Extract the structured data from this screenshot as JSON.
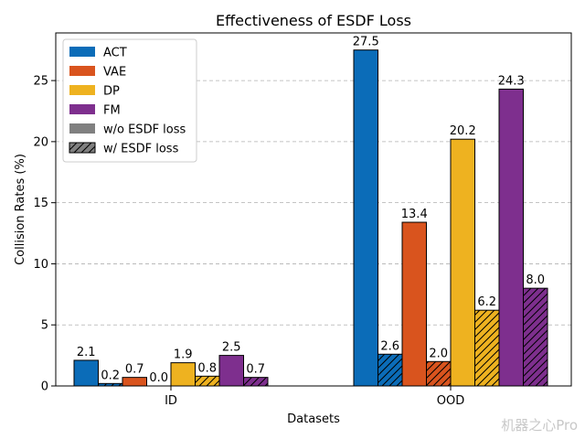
{
  "watermark": "机器之心Pro",
  "colors": {
    "ACT": "#0b6cb8",
    "VAE": "#d9541e",
    "DP": "#eeb220",
    "FM": "#7e2f8e",
    "neutral": "#808080"
  },
  "chart_data": {
    "type": "bar",
    "title": "Effectiveness of ESDF Loss",
    "xlabel": "Datasets",
    "ylabel": "Collision Rates (%)",
    "categories": [
      "ID",
      "OOD"
    ],
    "ylim": [
      0,
      28.9
    ],
    "yticks": [
      0,
      5,
      10,
      15,
      20,
      25
    ],
    "grid": "y-dashed",
    "legend_placement": "top-left",
    "series": [
      {
        "name": "ACT",
        "variant": "w/o ESDF loss",
        "color_key": "ACT",
        "hatched": false,
        "values": [
          2.1,
          27.5
        ],
        "labels": [
          "2.1",
          "27.5"
        ]
      },
      {
        "name": "ACT",
        "variant": "w/ ESDF loss",
        "color_key": "ACT",
        "hatched": true,
        "values": [
          0.2,
          2.6
        ],
        "labels": [
          "0.2",
          "2.6"
        ]
      },
      {
        "name": "VAE",
        "variant": "w/o ESDF loss",
        "color_key": "VAE",
        "hatched": false,
        "values": [
          0.7,
          13.4
        ],
        "labels": [
          "0.7",
          "13.4"
        ]
      },
      {
        "name": "VAE",
        "variant": "w/ ESDF loss",
        "color_key": "VAE",
        "hatched": true,
        "values": [
          0.0,
          2.0
        ],
        "labels": [
          "0.0",
          "2.0"
        ]
      },
      {
        "name": "DP",
        "variant": "w/o ESDF loss",
        "color_key": "DP",
        "hatched": false,
        "values": [
          1.9,
          20.2
        ],
        "labels": [
          "1.9",
          "20.2"
        ]
      },
      {
        "name": "DP",
        "variant": "w/ ESDF loss",
        "color_key": "DP",
        "hatched": true,
        "values": [
          0.8,
          6.2
        ],
        "labels": [
          "0.8",
          "6.2"
        ]
      },
      {
        "name": "FM",
        "variant": "w/o ESDF loss",
        "color_key": "FM",
        "hatched": false,
        "values": [
          2.5,
          24.3
        ],
        "labels": [
          "2.5",
          "24.3"
        ]
      },
      {
        "name": "FM",
        "variant": "w/ ESDF loss",
        "color_key": "FM",
        "hatched": true,
        "values": [
          0.7,
          8.0
        ],
        "labels": [
          "0.7",
          "8.0"
        ]
      }
    ],
    "legend": [
      {
        "label": "ACT",
        "color_key": "ACT",
        "hatched": false
      },
      {
        "label": "VAE",
        "color_key": "VAE",
        "hatched": false
      },
      {
        "label": "DP",
        "color_key": "DP",
        "hatched": false
      },
      {
        "label": "FM",
        "color_key": "FM",
        "hatched": false
      },
      {
        "label": "w/o ESDF loss",
        "color_key": "neutral",
        "hatched": false
      },
      {
        "label": "w/ ESDF loss",
        "color_key": "neutral",
        "hatched": true
      }
    ]
  }
}
